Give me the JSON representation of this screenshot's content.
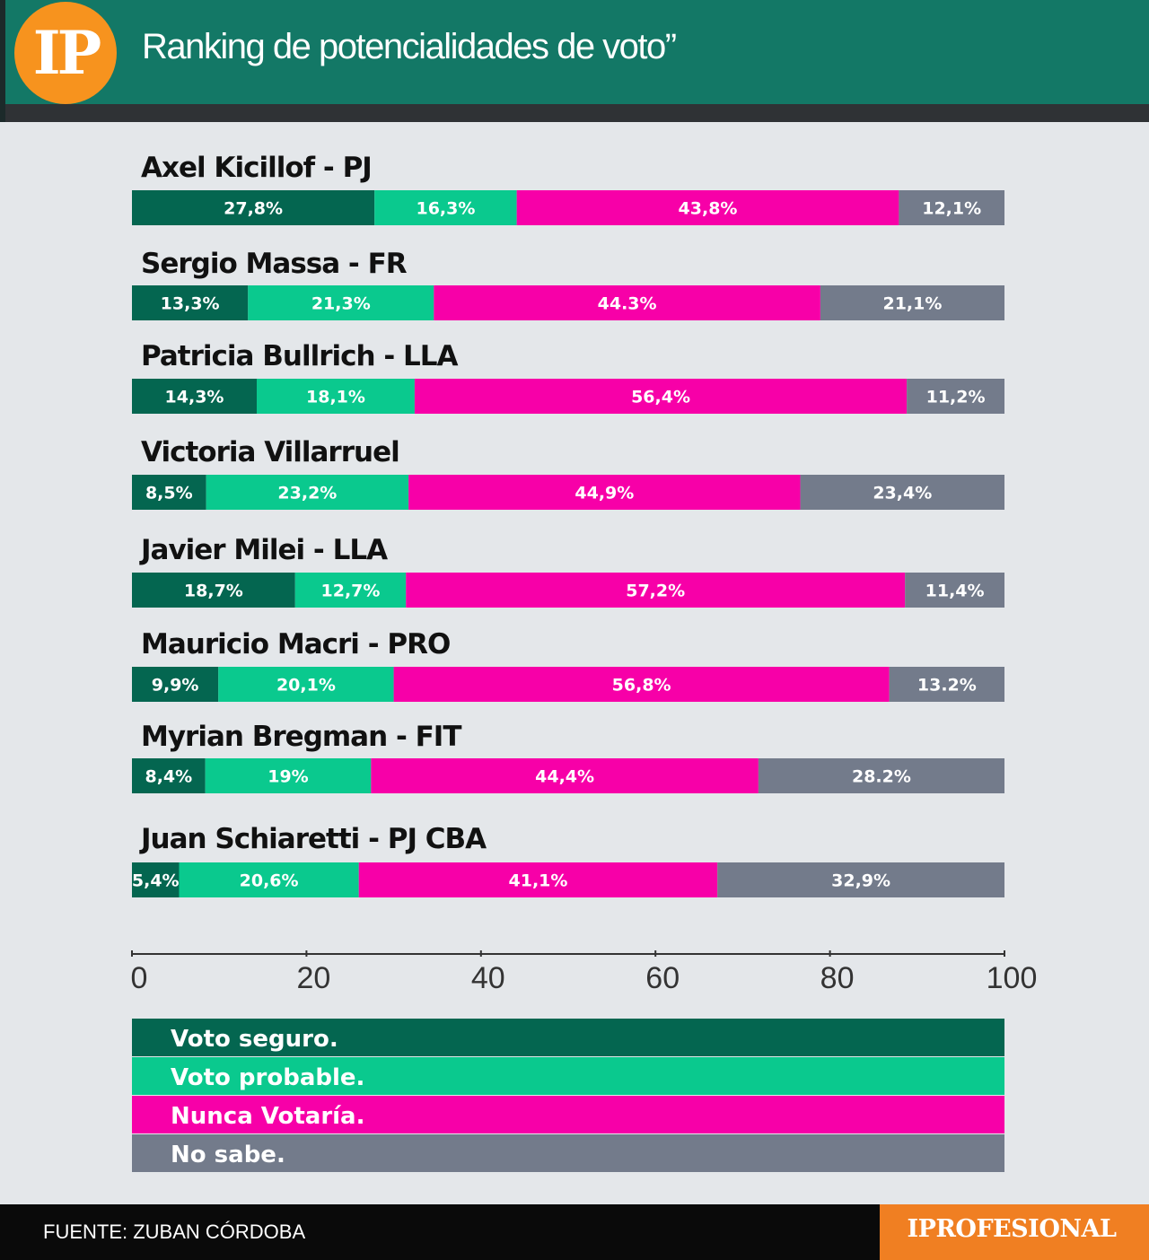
{
  "header": {
    "logo_text": "IP",
    "title": "Ranking de potencialidades de voto”"
  },
  "footer": {
    "source": "FUENTE: ZUBAN CÓRDOBA",
    "brand": "IPROFESIONAL"
  },
  "colors": {
    "header_bg": "#137866",
    "voto_seguro": "#046650",
    "voto_probable": "#0ac98e",
    "nunca_votaria": "#f700a8",
    "no_sabe": "#737b8b",
    "logo": "#f7931e",
    "brand_box": "#f07f22"
  },
  "chart_data": {
    "type": "bar",
    "orientation": "horizontal",
    "stacked": true,
    "categories": [
      "Axel Kicillof - PJ",
      "Sergio Massa - FR",
      "Patricia Bullrich - LLA",
      "Victoria Villarruel",
      "Javier Milei - LLA",
      "Mauricio Macri - PRO",
      "Myrian Bregman - FIT",
      "Juan Schiaretti - PJ CBA"
    ],
    "series": [
      {
        "name": "Voto seguro.",
        "values": [
          27.8,
          13.3,
          14.3,
          8.5,
          18.7,
          9.9,
          8.4,
          5.4
        ],
        "labels": [
          "27,8%",
          "13,3%",
          "14,3%",
          "8,5%",
          "18,7%",
          "9,9%",
          "8,4%",
          "5,4%"
        ]
      },
      {
        "name": "Voto probable.",
        "values": [
          16.3,
          21.3,
          18.1,
          23.2,
          12.7,
          20.1,
          19,
          20.6
        ],
        "labels": [
          "16,3%",
          "21,3%",
          "18,1%",
          "23,2%",
          "12,7%",
          "20,1%",
          "19%",
          "20,6%"
        ]
      },
      {
        "name": "Nunca Votaría.",
        "values": [
          43.8,
          44.3,
          56.4,
          44.9,
          57.2,
          56.8,
          44.4,
          41.1
        ],
        "labels": [
          "43,8%",
          "44.3%",
          "56,4%",
          "44,9%",
          "57,2%",
          "56,8%",
          "44,4%",
          "41,1%"
        ]
      },
      {
        "name": "No sabe.",
        "values": [
          12.1,
          21.1,
          11.2,
          23.4,
          11.4,
          13.2,
          28.2,
          32.9
        ],
        "labels": [
          "12,1%",
          "21,1%",
          "11,2%",
          "23,4%",
          "11,4%",
          "13.2%",
          "28.2%",
          "32,9%"
        ]
      }
    ],
    "xlim": [
      0,
      100
    ],
    "xticks": [
      0,
      20,
      40,
      60,
      80,
      100
    ],
    "grid": false,
    "legend": "bottom"
  }
}
